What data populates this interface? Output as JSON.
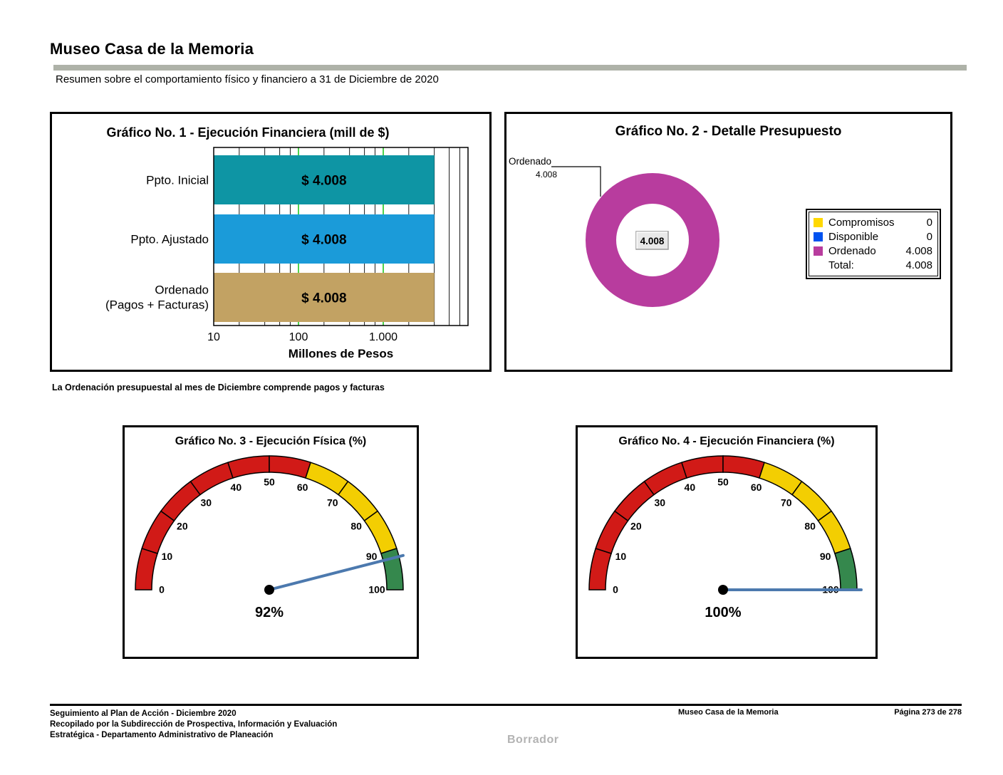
{
  "page": {
    "title": "Museo Casa de la Memoria",
    "subtitle": "Resumen sobre el comportamiento físico y financiero a 31 de Diciembre de 2020",
    "note": "La Ordenación presupuestal al mes de Diciembre comprende pagos y facturas",
    "watermark": "Borrador",
    "footer": {
      "left_lines": [
        "Seguimiento al Plan de Acción - Diciembre 2020",
        "Recopilado por la Subdirección de Prospectiva, Información y Evaluación",
        "Estratégica - Departamento Administrativo de Planeación"
      ],
      "center": "Museo Casa de la Memoria",
      "right": "Página 273 de 278"
    },
    "colors": {
      "header_bar": "#AEB2A8",
      "watermark": "#B3B3B3"
    }
  },
  "chart_data": [
    {
      "id": "grafico-1",
      "type": "bar",
      "orientation": "horizontal",
      "title": "Gráfico No. 1 - Ejecución Financiera (mill de $)",
      "xlabel": "Millones de Pesos",
      "x_scale": "log",
      "x_range": [
        10,
        10000
      ],
      "x_ticks": [
        "10",
        "100",
        "1.000"
      ],
      "x_tick_values": [
        10,
        100,
        1000
      ],
      "x_major_gridlines": [
        100,
        1000
      ],
      "categories": [
        "Ppto. Inicial",
        "Ppto. Ajustado",
        "Ordenado\n(Pagos + Facturas)"
      ],
      "values": [
        4008,
        4008,
        4008
      ],
      "value_labels": [
        "$ 4.008",
        "$ 4.008",
        "$ 4.008"
      ],
      "bar_colors": [
        "#0E95A4",
        "#1B9BD9",
        "#C2A263"
      ],
      "gridline_minor_color": "#1A1A1A",
      "gridline_major_color": "#00C000"
    },
    {
      "id": "grafico-2",
      "type": "pie",
      "donut": true,
      "title": "Gráfico No. 2 - Detalle Presupuesto",
      "slices": [
        {
          "label": "Compromisos",
          "value": 0,
          "color": "#FFD800"
        },
        {
          "label": "Disponible",
          "value": 0,
          "color": "#0052F0"
        },
        {
          "label": "Ordenado",
          "value": 4008,
          "color": "#B83C9E"
        }
      ],
      "center_label": "4.008",
      "callout_label": "Ordenado",
      "callout_value": "4.008",
      "legend_rows": [
        {
          "label": "Compromisos",
          "value": "0",
          "color": "#FFD800"
        },
        {
          "label": "Disponible",
          "value": "0",
          "color": "#0052F0"
        },
        {
          "label": "Ordenado",
          "value": "4.008",
          "color": "#B83C9E"
        },
        {
          "label": "Total:",
          "value": "4.008",
          "color": null
        }
      ]
    },
    {
      "id": "grafico-3",
      "type": "gauge",
      "title": "Gráfico No. 3 -  Ejecución Física (%)",
      "min": 0,
      "max": 100,
      "tick_interval": 10,
      "value": 92,
      "value_label": "92%",
      "bands": [
        {
          "from": 0,
          "to": 60,
          "color": "#D11A17"
        },
        {
          "from": 60,
          "to": 90,
          "color": "#F3CE02"
        },
        {
          "from": 90,
          "to": 100,
          "color": "#35884D"
        }
      ],
      "needle_color": "#4C79AE"
    },
    {
      "id": "grafico-4",
      "type": "gauge",
      "title": "Gráfico No. 4 -  Ejecución Financiera (%)",
      "min": 0,
      "max": 100,
      "tick_interval": 10,
      "value": 100,
      "value_label": "100%",
      "bands": [
        {
          "from": 0,
          "to": 60,
          "color": "#D11A17"
        },
        {
          "from": 60,
          "to": 90,
          "color": "#F3CE02"
        },
        {
          "from": 90,
          "to": 100,
          "color": "#35884D"
        }
      ],
      "needle_color": "#4C79AE"
    }
  ]
}
